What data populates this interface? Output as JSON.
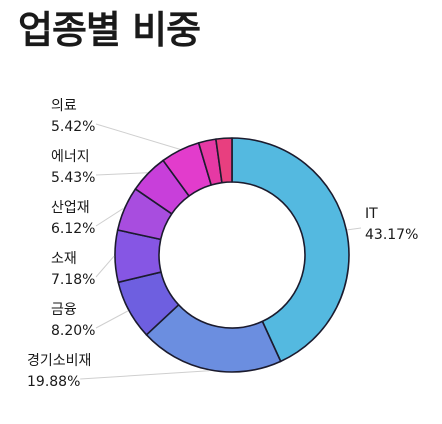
{
  "title": "업종별 비중",
  "chart_data": {
    "type": "donut",
    "title": "업종별 비중",
    "slices": [
      {
        "label": "IT",
        "value": 43.17,
        "value_text": "43.17%",
        "color": "#54b9e0"
      },
      {
        "label": "경기소비재",
        "value": 19.88,
        "value_text": "19.88%",
        "color": "#6b8ee0"
      },
      {
        "label": "금융",
        "value": 8.2,
        "value_text": "8.20%",
        "color": "#6e5fe0"
      },
      {
        "label": "소재",
        "value": 7.18,
        "value_text": "7.18%",
        "color": "#8656e4"
      },
      {
        "label": "산업재",
        "value": 6.12,
        "value_text": "6.12%",
        "color": "#a84ddf"
      },
      {
        "label": "에너지",
        "value": 5.43,
        "value_text": "5.43%",
        "color": "#c83fda"
      },
      {
        "label": "의료",
        "value": 5.42,
        "value_text": "5.42%",
        "color": "#e23ccc"
      },
      {
        "label": "",
        "value": 2.4,
        "value_text": "",
        "color": "#e639a4"
      },
      {
        "label": "",
        "value": 2.2,
        "value_text": "",
        "color": "#e83f7f"
      }
    ],
    "start": "top",
    "direction": "clockwise",
    "legend": "none"
  }
}
